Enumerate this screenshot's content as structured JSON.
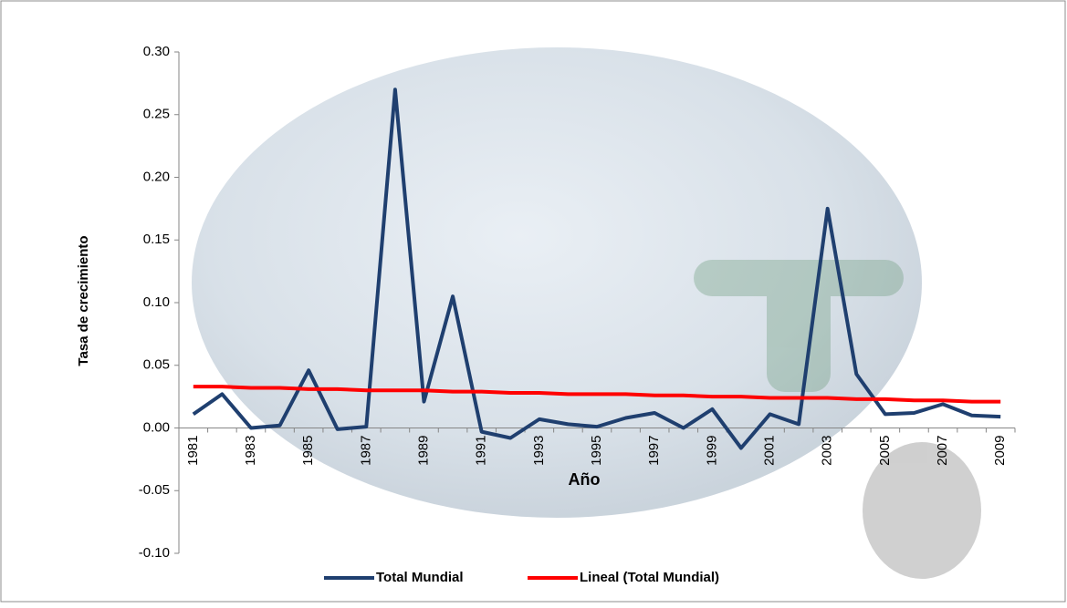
{
  "chart_data": {
    "type": "line",
    "x_label": "Año",
    "y_label": "Tasa de crecimiento",
    "categories": [
      "1981",
      null,
      "1983",
      null,
      "1985",
      null,
      "1987",
      null,
      "1989",
      null,
      "1991",
      null,
      "1993",
      null,
      "1995",
      null,
      "1997",
      null,
      "1999",
      null,
      "2001",
      null,
      "2003",
      null,
      "2005",
      null,
      "2007",
      null,
      "2009"
    ],
    "series": [
      {
        "name": "Total Mundial",
        "color": "#1f3f6f",
        "values": [
          0.011,
          0.027,
          0.0,
          0.002,
          0.046,
          -0.001,
          0.001,
          0.27,
          0.021,
          0.105,
          -0.003,
          -0.008,
          0.007,
          0.003,
          0.001,
          0.008,
          0.012,
          0.0,
          0.015,
          -0.016,
          0.011,
          0.003,
          0.175,
          0.043,
          0.011,
          0.012,
          0.019,
          0.01,
          0.009
        ]
      },
      {
        "name": "Lineal (Total Mundial)",
        "color": "#ff0000",
        "values": [
          0.033,
          0.033,
          0.032,
          0.032,
          0.031,
          0.031,
          0.03,
          0.03,
          0.03,
          0.029,
          0.029,
          0.028,
          0.028,
          0.027,
          0.027,
          0.027,
          0.026,
          0.026,
          0.025,
          0.025,
          0.024,
          0.024,
          0.024,
          0.023,
          0.023,
          0.022,
          0.022,
          0.021,
          0.021
        ]
      }
    ],
    "ylim": [
      -0.1,
      0.3
    ],
    "yticks": [
      {
        "value": -0.1,
        "label": "-0.10"
      },
      {
        "value": -0.05,
        "label": "-0.05"
      },
      {
        "value": 0,
        "label": "0.00"
      },
      {
        "value": 0.05,
        "label": "0.05"
      },
      {
        "value": 0.1,
        "label": "0.10"
      },
      {
        "value": 0.15,
        "label": "0.15"
      },
      {
        "value": 0.2,
        "label": "0.20"
      },
      {
        "value": 0.25,
        "label": "0.25"
      },
      {
        "value": 0.3,
        "label": "0.30"
      }
    ],
    "grid": false,
    "legend": "bottom"
  }
}
